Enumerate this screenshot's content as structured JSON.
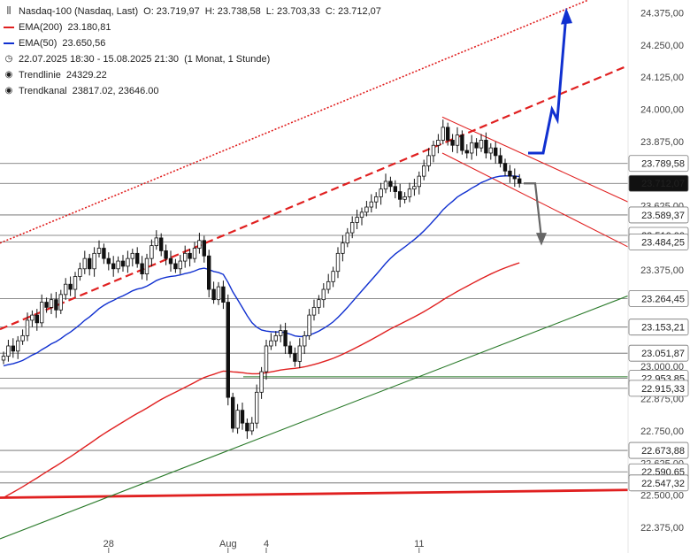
{
  "legend": {
    "symbol": "Nasdaq-100 (Nasdaq, Last)",
    "o": "O: 23.719,97",
    "h": "H: 23.738,58",
    "l": "L: 23.703,33",
    "c": "C: 23.712,07",
    "ema200_label": "EMA(200)",
    "ema200_value": "23.180,81",
    "ema50_label": "EMA(50)",
    "ema50_value": "23.650,56",
    "range": "22.07.2025 18:30 - 15.08.2025 21:30",
    "range_note": "(1 Monat, 1 Stunde)",
    "trendline_label": "Trendlinie",
    "trendline_value": "24329.22",
    "channel_label": "Trendkanal",
    "channel_value": "23817.02, 23646.00",
    "colors": {
      "ema200": "#e02020",
      "ema50": "#1030d0",
      "text": "#222222"
    }
  },
  "chart_data": {
    "type": "candlestick",
    "ylim": [
      22275,
      24425
    ],
    "y_ticks": [
      {
        "v": 24375,
        "label": "24.375,00"
      },
      {
        "v": 24250,
        "label": "24.250,00"
      },
      {
        "v": 24125,
        "label": "24.125,00"
      },
      {
        "v": 24000,
        "label": "24.000,00"
      },
      {
        "v": 23875,
        "label": "23.875,00"
      },
      {
        "v": 23625,
        "label": "23.625,00"
      },
      {
        "v": 23375,
        "label": "23.375,00"
      },
      {
        "v": 23000,
        "label": "23.000,00"
      },
      {
        "v": 22875,
        "label": "22.875,00"
      },
      {
        "v": 22750,
        "label": "22.750,00"
      },
      {
        "v": 22625,
        "label": "22.625,00"
      },
      {
        "v": 22500,
        "label": "22.500,00"
      },
      {
        "v": 22375,
        "label": "22.375,00"
      }
    ],
    "x_ticks": [
      {
        "i": 22,
        "label": "28"
      },
      {
        "i": 47,
        "label": "Aug"
      },
      {
        "i": 55,
        "label": "4"
      },
      {
        "i": 87,
        "label": "11"
      }
    ],
    "levels": [
      {
        "v": 23789.58,
        "label": "23.789,58",
        "kind": "level"
      },
      {
        "v": 23712.07,
        "label": "23.712,07",
        "kind": "last"
      },
      {
        "v": 23589.37,
        "label": "23.589,37",
        "kind": "level"
      },
      {
        "v": 23510.0,
        "label": "23.510,00",
        "kind": "level"
      },
      {
        "v": 23484.25,
        "label": "23.484,25",
        "kind": "level"
      },
      {
        "v": 23264.45,
        "label": "23.264,45",
        "kind": "level"
      },
      {
        "v": 23153.21,
        "label": "23.153,21",
        "kind": "level"
      },
      {
        "v": 23051.87,
        "label": "23.051,87",
        "kind": "level"
      },
      {
        "v": 22953.85,
        "label": "22.953,85",
        "kind": "level"
      },
      {
        "v": 22915.33,
        "label": "22.915,33",
        "kind": "level"
      },
      {
        "v": 22673.88,
        "label": "22.673,88",
        "kind": "level"
      },
      {
        "v": 22590.65,
        "label": "22.590,65",
        "kind": "level"
      },
      {
        "v": 22547.32,
        "label": "22.547,32",
        "kind": "level"
      }
    ],
    "closes": [
      23040,
      23080,
      23060,
      23100,
      23120,
      23180,
      23200,
      23170,
      23250,
      23230,
      23260,
      23220,
      23280,
      23320,
      23300,
      23350,
      23380,
      23420,
      23380,
      23440,
      23460,
      23420,
      23400,
      23380,
      23410,
      23390,
      23420,
      23440,
      23400,
      23360,
      23420,
      23470,
      23500,
      23450,
      23420,
      23400,
      23380,
      23410,
      23440,
      23420,
      23460,
      23490,
      23430,
      23300,
      23260,
      23310,
      23250,
      22880,
      22760,
      22830,
      22780,
      22750,
      22780,
      22900,
      22980,
      23080,
      23100,
      23120,
      23140,
      23080,
      23050,
      23020,
      23080,
      23120,
      23200,
      23230,
      23260,
      23300,
      23330,
      23370,
      23440,
      23480,
      23520,
      23560,
      23580,
      23600,
      23620,
      23640,
      23660,
      23690,
      23720,
      23700,
      23680,
      23650,
      23660,
      23690,
      23700,
      23740,
      23780,
      23820,
      23860,
      23880,
      23930,
      23880,
      23860,
      23900,
      23840,
      23830,
      23870,
      23850,
      23880,
      23830,
      23850,
      23820,
      23790,
      23760,
      23740,
      23730,
      23712
    ]
  }
}
